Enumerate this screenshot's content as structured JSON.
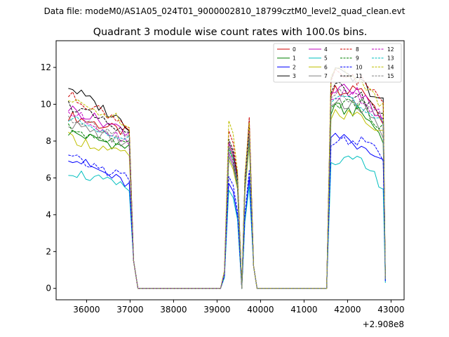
{
  "suptitle": "Data file: modeM0/AS1A05_024T01_9000002810_18799cztM0_level2_quad_clean.evt",
  "chart_data": {
    "type": "line",
    "title": "Quadrant 3 module wise count rates with 100.0s bins.",
    "xlabel": "",
    "ylabel": "",
    "x_offset_label": "+2.908e8",
    "xlim": [
      35300,
      43300
    ],
    "ylim": [
      -0.62,
      13.45
    ],
    "xticks": [
      36000,
      37000,
      38000,
      39000,
      40000,
      41000,
      42000,
      43000
    ],
    "yticks": [
      0,
      2,
      4,
      6,
      8,
      10,
      12
    ],
    "legend_position": "upper-right",
    "legend_columns": 4,
    "x_segments": [
      {
        "start": 35580,
        "end": 37080,
        "step": 100
      },
      {
        "start": 37180,
        "end": 39080,
        "step": 100
      },
      {
        "start": 39170,
        "end": 39570,
        "step": 100
      },
      {
        "start": 39640,
        "end": 39840,
        "step": 100
      },
      {
        "start": 39920,
        "end": 41520,
        "step": 100
      },
      {
        "start": 41620,
        "end": 42820,
        "step": 100
      },
      {
        "start": 42870,
        "end": 42870,
        "step": 100
      }
    ],
    "series": [
      {
        "name": "0",
        "color": "#cc0000",
        "dash": "solid",
        "phases": [
          9.4,
          8.4,
          1.5
        ],
        "peaks": [
          8.4,
          8.0,
          8.8
        ],
        "after": [
          11.6,
          11.0,
          9.2
        ],
        "end": 0.6
      },
      {
        "name": "1",
        "color": "#008000",
        "dash": "solid",
        "phases": [
          8.5,
          7.6,
          1.5
        ],
        "peaks": [
          7.8,
          7.4,
          8.0
        ],
        "after": [
          10.5,
          9.6,
          8.2
        ],
        "end": 0.5
      },
      {
        "name": "2",
        "color": "#0000ff",
        "dash": "solid",
        "phases": [
          7.2,
          5.6,
          1.5
        ],
        "peaks": [
          6.2,
          5.2,
          6.0
        ],
        "after": [
          9.1,
          7.6,
          6.7
        ],
        "end": 0.4
      },
      {
        "name": "3",
        "color": "#000000",
        "dash": "solid",
        "phases": [
          11.0,
          8.8,
          1.5
        ],
        "peaks": [
          8.6,
          8.3,
          9.1
        ],
        "after": [
          12.6,
          11.2,
          10.1
        ],
        "end": 0.5
      },
      {
        "name": "4",
        "color": "#bf00bf",
        "dash": "solid",
        "phases": [
          9.8,
          8.5,
          1.5
        ],
        "peaks": [
          8.0,
          7.6,
          8.4
        ],
        "after": [
          11.8,
          10.6,
          9.0
        ],
        "end": 0.5
      },
      {
        "name": "5",
        "color": "#00bfbf",
        "dash": "solid",
        "phases": [
          6.4,
          5.4,
          1.5
        ],
        "peaks": [
          5.8,
          5.0,
          5.6
        ],
        "after": [
          7.6,
          6.8,
          5.6
        ],
        "end": 0.3
      },
      {
        "name": "6",
        "color": "#bfbf00",
        "dash": "solid",
        "phases": [
          8.2,
          7.2,
          1.5
        ],
        "peaks": [
          7.6,
          7.2,
          7.8
        ],
        "after": [
          10.2,
          9.4,
          8.3
        ],
        "end": 0.5
      },
      {
        "name": "7",
        "color": "#808080",
        "dash": "solid",
        "phases": [
          9.0,
          7.8,
          1.5
        ],
        "peaks": [
          7.8,
          7.4,
          8.2
        ],
        "after": [
          11.0,
          9.8,
          8.4
        ],
        "end": 0.5
      },
      {
        "name": "8",
        "color": "#cc0000",
        "dash": "dashed",
        "phases": [
          10.5,
          8.9,
          1.5
        ],
        "peaks": [
          9.3,
          8.1,
          9.3
        ],
        "after": [
          12.5,
          11.3,
          10.3
        ],
        "end": 0.6
      },
      {
        "name": "9",
        "color": "#008000",
        "dash": "dashed",
        "phases": [
          8.7,
          7.7,
          1.5
        ],
        "peaks": [
          8.2,
          7.5,
          8.3
        ],
        "after": [
          10.9,
          10.0,
          8.7
        ],
        "end": 0.5
      },
      {
        "name": "10",
        "color": "#0000ff",
        "dash": "dashed",
        "phases": [
          7.1,
          6.0,
          1.5
        ],
        "peaks": [
          6.6,
          5.6,
          6.4
        ],
        "after": [
          8.6,
          8.0,
          7.1
        ],
        "end": 0.4
      },
      {
        "name": "11",
        "color": "#000000",
        "dash": "dashed",
        "phases": [
          10.0,
          8.3,
          1.5
        ],
        "peaks": [
          8.8,
          7.9,
          8.7
        ],
        "after": [
          11.8,
          10.4,
          9.5
        ],
        "end": 0.5
      },
      {
        "name": "12",
        "color": "#bf00bf",
        "dash": "dashed",
        "phases": [
          9.6,
          8.0,
          1.5
        ],
        "peaks": [
          8.6,
          7.8,
          8.6
        ],
        "after": [
          11.4,
          10.2,
          9.2
        ],
        "end": 0.5
      },
      {
        "name": "13",
        "color": "#00bfbf",
        "dash": "dashed",
        "phases": [
          9.2,
          8.2,
          1.5
        ],
        "peaks": [
          8.3,
          7.6,
          8.2
        ],
        "after": [
          11.2,
          10.0,
          8.8
        ],
        "end": 0.5
      },
      {
        "name": "14",
        "color": "#bfbf00",
        "dash": "dashed",
        "phases": [
          10.2,
          9.0,
          1.5
        ],
        "peaks": [
          9.9,
          8.5,
          9.0
        ],
        "after": [
          12.8,
          11.4,
          9.8
        ],
        "end": 0.6
      },
      {
        "name": "15",
        "color": "#808080",
        "dash": "dashed",
        "phases": [
          9.3,
          8.3,
          1.5
        ],
        "peaks": [
          8.4,
          7.7,
          8.4
        ],
        "after": [
          11.5,
          10.2,
          9.0
        ],
        "end": 0.5
      }
    ]
  }
}
